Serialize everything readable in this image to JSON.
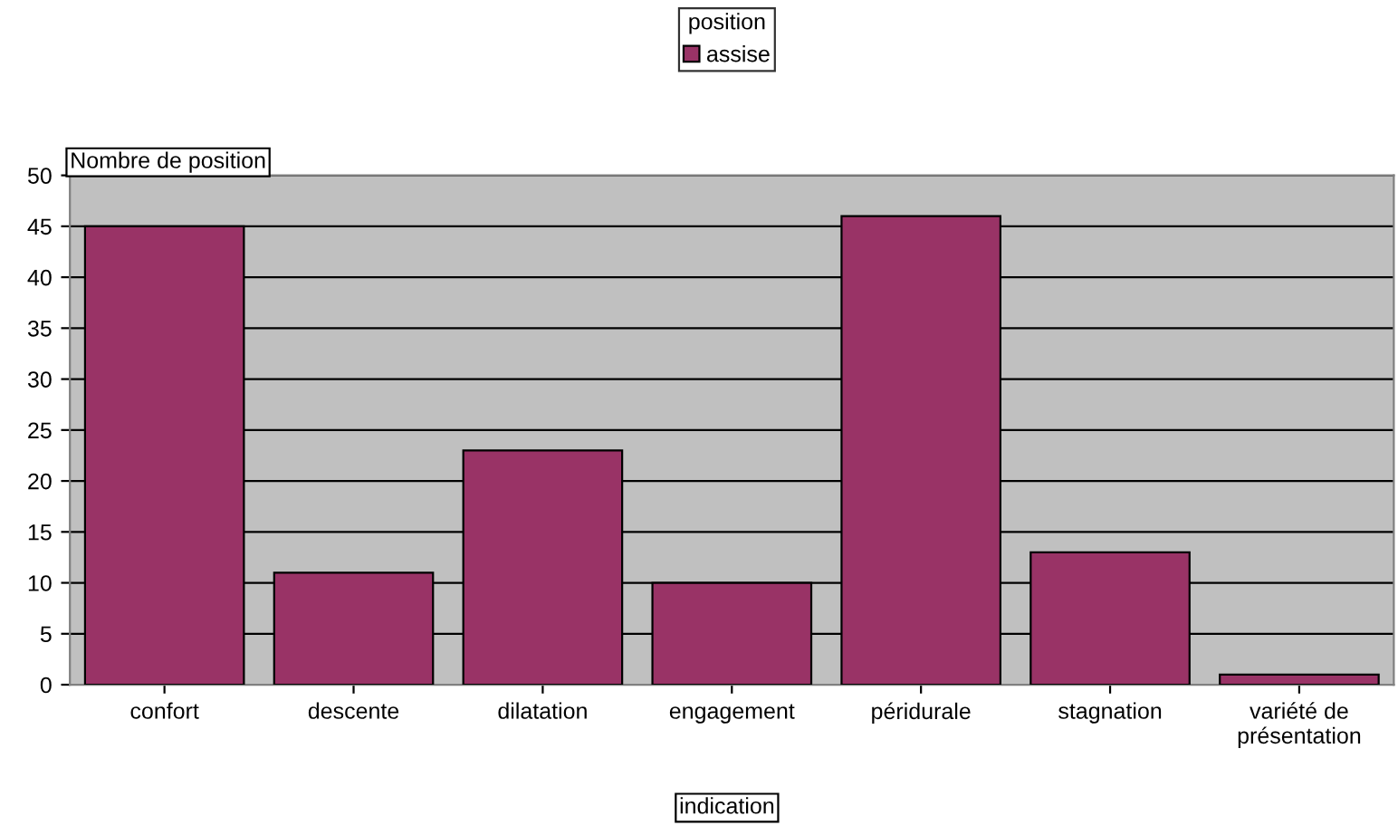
{
  "chart_data": {
    "type": "bar",
    "xlabel": "indication",
    "ylabel": "Nombre de position",
    "legend_title": "position",
    "categories": [
      "confort",
      "descente",
      "dilatation",
      "engagement",
      "péridurale",
      "stagnation",
      "variété de\nprésentation"
    ],
    "series": [
      {
        "name": "assise",
        "color": "#993366",
        "values": [
          45,
          11,
          23,
          10,
          46,
          13,
          1
        ]
      }
    ],
    "ylim": [
      0,
      50
    ],
    "yticks": [
      0,
      5,
      10,
      15,
      20,
      25,
      30,
      35,
      40,
      45,
      50
    ],
    "grid": "y",
    "legend": "top"
  }
}
